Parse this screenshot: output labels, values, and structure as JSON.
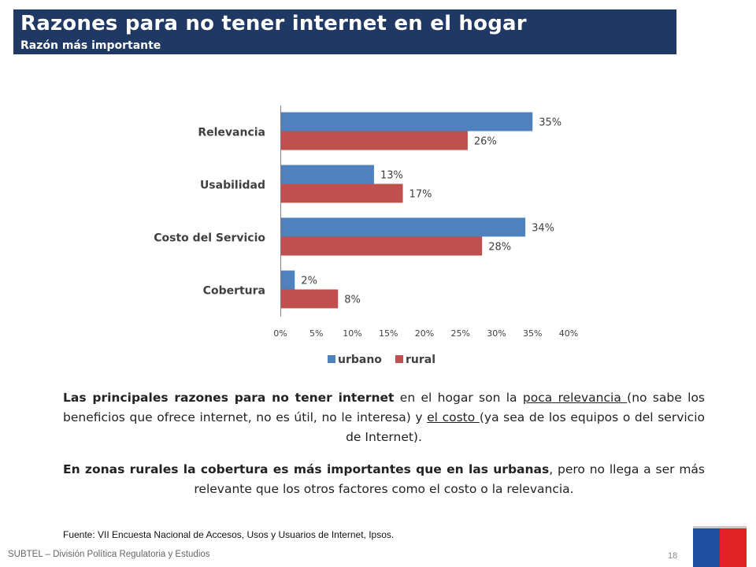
{
  "header": {
    "title": "Razones para no tener internet en el hogar",
    "subtitle": "Razón más importante"
  },
  "chart_data": {
    "type": "bar",
    "orientation": "horizontal",
    "categories": [
      "Relevancia",
      "Usabilidad",
      "Costo del Servicio",
      "Cobertura"
    ],
    "series": [
      {
        "name": "urbano",
        "values": [
          35,
          13,
          34,
          2
        ],
        "color": "#4f81bd"
      },
      {
        "name": "rural",
        "values": [
          26,
          17,
          28,
          8
        ],
        "color": "#c0504d"
      }
    ],
    "value_labels": [
      [
        "35%",
        "13%",
        "34%",
        "2%"
      ],
      [
        "26%",
        "17%",
        "28%",
        "8%"
      ]
    ],
    "xlim": [
      0,
      40
    ],
    "x_ticks": [
      "0%",
      "5%",
      "10%",
      "15%",
      "20%",
      "25%",
      "30%",
      "35%",
      "40%"
    ],
    "grid": false,
    "legend_position": "bottom"
  },
  "text": {
    "p1_a": "Las principales razones para no tener internet",
    "p1_b": " en el hogar son la ",
    "p1_c": "poca relevancia ",
    "p1_d": "(no sabe los beneficios que ofrece internet, no es útil, no le interesa) y ",
    "p1_e": "el costo ",
    "p1_f": "(ya sea de los equipos o del servicio de Internet).",
    "p2_a": "En zonas rurales la cobertura es más importantes que en las urbanas",
    "p2_b": ", pero no llega a ser más relevante que los otros factores como el costo o la relevancia."
  },
  "source": "Fuente: VII Encuesta Nacional de Accesos, Usos y Usuarios de Internet, Ipsos.",
  "footer": {
    "org": "SUBTEL – División Política Regulatoria y Estudios",
    "page": "18"
  }
}
